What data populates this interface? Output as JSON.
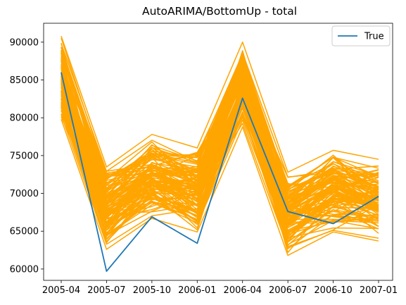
{
  "chart_data": {
    "type": "line",
    "title": "AutoARIMA/BottomUp - total",
    "xlabel": "",
    "ylabel": "",
    "categories": [
      "2005-04",
      "2005-07",
      "2005-10",
      "2006-01",
      "2006-04",
      "2006-07",
      "2006-10",
      "2007-01"
    ],
    "ylim": [
      58500,
      92500
    ],
    "yticks": [
      60000,
      65000,
      70000,
      75000,
      80000,
      85000,
      90000
    ],
    "grid": false,
    "legend": {
      "placement": "top-right",
      "entries": [
        "True"
      ]
    },
    "colors": {
      "true": "#1f77b4",
      "samples": "#ffa500"
    },
    "series": [
      {
        "name": "True",
        "values": [
          86000,
          59700,
          66900,
          63400,
          82600,
          67600,
          66000,
          69600
        ]
      }
    ],
    "sample_envelope": {
      "low": [
        79800,
        62600,
        66700,
        64900,
        78800,
        61800,
        64900,
        63700
      ],
      "high": [
        90800,
        73500,
        77800,
        76000,
        90000,
        72800,
        75700,
        74500
      ]
    },
    "sample_count": 120
  }
}
